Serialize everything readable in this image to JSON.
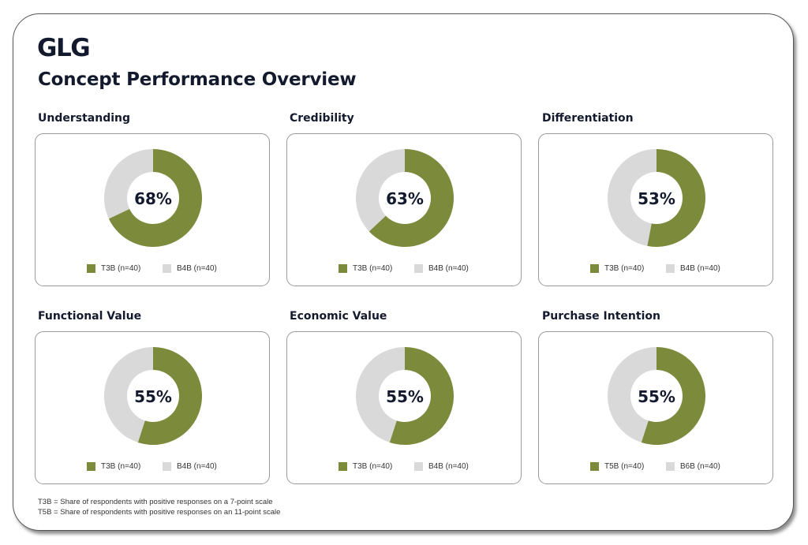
{
  "brand": {
    "logo_text": "GLG"
  },
  "title": "Concept Performance Overview",
  "colors": {
    "positive": "#7b8a3b",
    "negative": "#d9d9d9",
    "text": "#131a2e"
  },
  "chart_data": [
    {
      "type": "pie",
      "title": "Understanding",
      "center_label": "68%",
      "values": [
        68,
        32
      ],
      "legend": [
        "T3B (n=40)",
        "B4B (n=40)"
      ]
    },
    {
      "type": "pie",
      "title": "Credibility",
      "center_label": "63%",
      "values": [
        63,
        37
      ],
      "legend": [
        "T3B (n=40)",
        "B4B (n=40)"
      ]
    },
    {
      "type": "pie",
      "title": "Differentiation",
      "center_label": "53%",
      "values": [
        53,
        47
      ],
      "legend": [
        "T3B (n=40)",
        "B4B (n=40)"
      ]
    },
    {
      "type": "pie",
      "title": "Functional Value",
      "center_label": "55%",
      "values": [
        55,
        45
      ],
      "legend": [
        "T3B (n=40)",
        "B4B (n=40)"
      ]
    },
    {
      "type": "pie",
      "title": "Economic Value",
      "center_label": "55%",
      "values": [
        55,
        45
      ],
      "legend": [
        "T3B (n=40)",
        "B4B (n=40)"
      ]
    },
    {
      "type": "pie",
      "title": "Purchase Intention",
      "center_label": "55%",
      "values": [
        55,
        45
      ],
      "legend": [
        "T5B (n=40)",
        "B6B (n=40)"
      ]
    }
  ],
  "footnotes": [
    "T3B = Share of respondents with positive responses on a 7-point scale",
    "T5B = Share of respondents with positive responses on an 11-point scale"
  ]
}
